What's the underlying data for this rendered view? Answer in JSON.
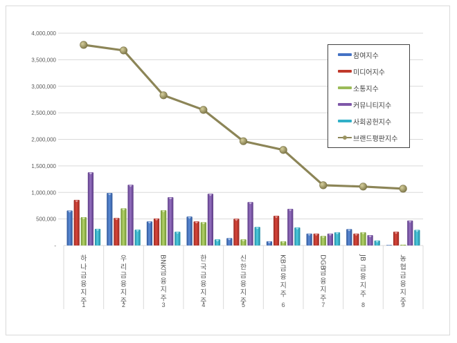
{
  "chart_data": {
    "type": "bar+line",
    "title": "",
    "xlabel": "",
    "ylabel": "",
    "ylim": [
      0,
      4000000
    ],
    "yticks": [
      "-",
      "500,000",
      "1,000,000",
      "1,500,000",
      "2,000,000",
      "2,500,000",
      "3,000,000",
      "3,500,000",
      "4,000,000"
    ],
    "grid": true,
    "legend_position": "top-right inside",
    "categories": [
      "하나금융지주",
      "우리금융지주",
      "BNK금융지주",
      "한국금융지주",
      "신한금융지주",
      "KB금융지주",
      "DGB금융지주",
      "JB금융지주",
      "농협금융지주"
    ],
    "category_numbers": [
      "1",
      "2",
      "3",
      "4",
      "5",
      "6",
      "7",
      "8",
      "9"
    ],
    "series": [
      {
        "name": "참여지수",
        "type": "bar",
        "color": "#4472c4",
        "values": [
          660000,
          990000,
          455000,
          545000,
          140000,
          80000,
          225000,
          310000,
          5000
        ]
      },
      {
        "name": "미디어지수",
        "type": "bar",
        "color": "#c0392b",
        "values": [
          860000,
          520000,
          510000,
          455000,
          505000,
          560000,
          225000,
          225000,
          260000
        ]
      },
      {
        "name": "소통지수",
        "type": "bar",
        "color": "#9bbb59",
        "values": [
          535000,
          700000,
          665000,
          440000,
          115000,
          80000,
          180000,
          250000,
          15000
        ]
      },
      {
        "name": "커뮤니티지수",
        "type": "bar",
        "color": "#7e57a8",
        "values": [
          1380000,
          1145000,
          910000,
          975000,
          820000,
          690000,
          225000,
          195000,
          470000
        ]
      },
      {
        "name": "사회공헌지수",
        "type": "bar",
        "color": "#31b0c8",
        "values": [
          315000,
          300000,
          260000,
          115000,
          350000,
          340000,
          250000,
          95000,
          295000
        ]
      },
      {
        "name": "브랜드평판지수",
        "type": "line",
        "color": "#8c8557",
        "values": [
          3780000,
          3675000,
          2830000,
          2555000,
          1965000,
          1800000,
          1135000,
          1110000,
          1070000
        ]
      }
    ]
  },
  "legend": {
    "items": [
      "참여지수",
      "미디어지수",
      "소통지수",
      "커뮤니티지수",
      "사회공헌지수",
      "브랜드평판지수"
    ]
  }
}
